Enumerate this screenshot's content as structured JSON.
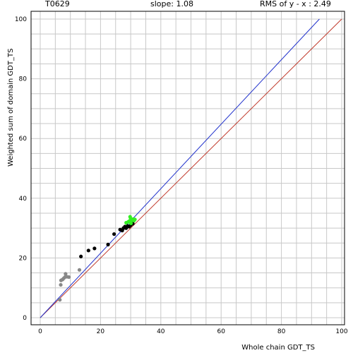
{
  "header": {
    "target": "T0629",
    "slope": "slope: 1.08",
    "rms": "RMS of  y - x : 2.49"
  },
  "chart_data": {
    "type": "scatter",
    "title": "",
    "xlabel": "Whole chain GDT_TS",
    "ylabel": "Weighted sum of domain GDT_TS",
    "xlim": [
      0,
      100
    ],
    "ylim": [
      0,
      100
    ],
    "xticks": [
      0,
      20,
      40,
      60,
      80,
      100
    ],
    "yticks": [
      0,
      20,
      40,
      60,
      80,
      100
    ],
    "grid": true,
    "lines": [
      {
        "name": "y = x",
        "color": "#c0392b",
        "x": [
          0,
          100
        ],
        "y": [
          0,
          100
        ]
      },
      {
        "name": "fit",
        "color": "#2233cc",
        "x": [
          0,
          92.6
        ],
        "y": [
          0,
          100
        ]
      }
    ],
    "series": [
      {
        "color": "#888888",
        "points": [
          [
            6.5,
            6
          ],
          [
            6.8,
            11
          ],
          [
            6.9,
            12.5
          ],
          [
            7.4,
            12.8
          ],
          [
            7.8,
            13.2
          ],
          [
            8.2,
            13.6
          ],
          [
            8.4,
            14.7
          ],
          [
            8.9,
            13.7
          ],
          [
            9.5,
            13.6
          ],
          [
            13,
            16
          ]
        ]
      },
      {
        "color": "#000000",
        "points": [
          [
            13.5,
            20.5
          ],
          [
            16,
            22.5
          ],
          [
            18,
            23.2
          ],
          [
            22.5,
            24.5
          ],
          [
            24.5,
            28
          ],
          [
            26.5,
            29.5
          ],
          [
            27.2,
            29.2
          ],
          [
            27.6,
            30
          ],
          [
            28.1,
            30.5
          ],
          [
            28.5,
            30
          ],
          [
            29,
            30.7
          ],
          [
            29.5,
            30.5
          ],
          [
            30,
            31
          ],
          [
            30.7,
            31.5
          ]
        ]
      },
      {
        "color": "#33ee22",
        "points": [
          [
            28.5,
            31.8
          ],
          [
            29.5,
            32.3
          ],
          [
            30,
            33.2
          ],
          [
            30.3,
            32.6
          ],
          [
            30.8,
            33
          ],
          [
            31.1,
            32.5
          ],
          [
            30.1,
            31.6
          ],
          [
            29.8,
            33.8
          ],
          [
            31.4,
            32.9
          ],
          [
            29.2,
            32.1
          ]
        ]
      }
    ]
  }
}
